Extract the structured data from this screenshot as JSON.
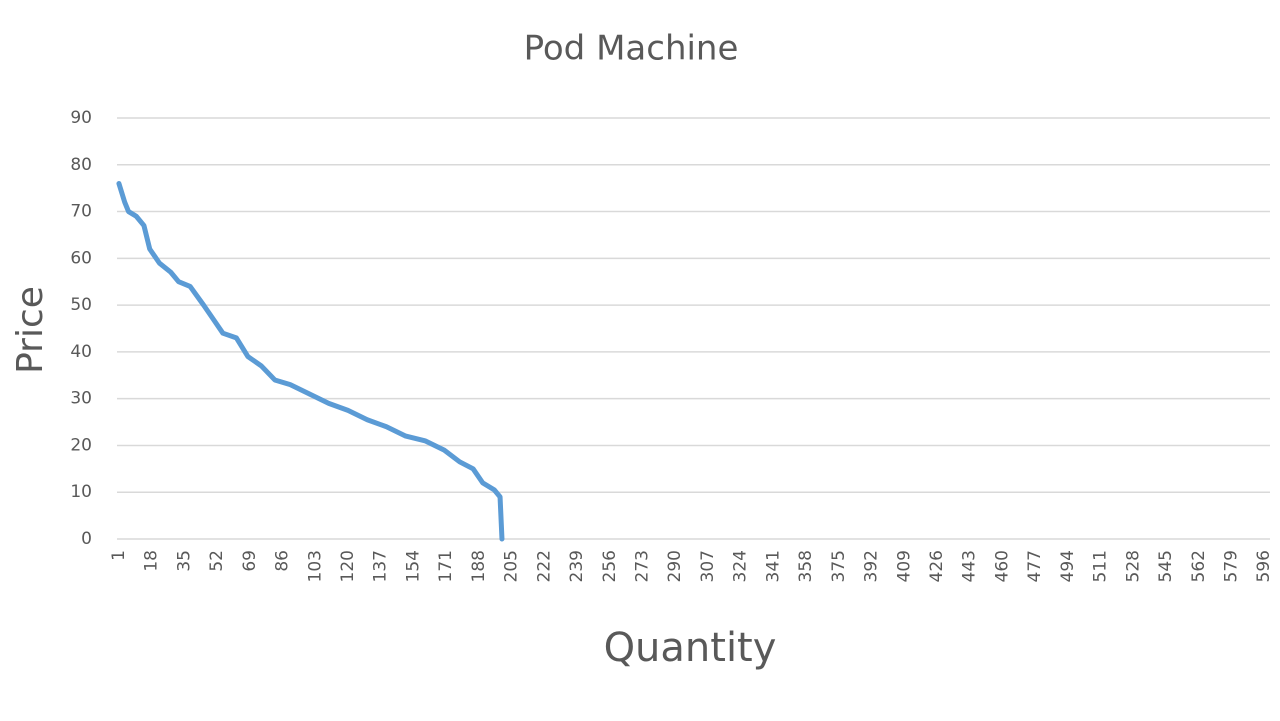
{
  "chart_data": {
    "type": "line",
    "title": "Pod Machine",
    "x_label": "Quantity",
    "y_label": "Price",
    "x": [
      1,
      4,
      6,
      10,
      14,
      17,
      22,
      28,
      32,
      38,
      45,
      50,
      55,
      62,
      68,
      75,
      82,
      90,
      100,
      110,
      120,
      130,
      140,
      150,
      160,
      170,
      178,
      185,
      190,
      196,
      199,
      200
    ],
    "series": [
      {
        "name": "Price",
        "color": "#5b9bd5",
        "values": [
          76,
          72,
          70,
          69,
          67,
          62,
          59,
          57,
          55,
          54,
          50,
          47,
          44,
          43,
          39,
          37,
          34,
          33,
          31,
          29,
          27.5,
          25.5,
          24,
          22,
          21,
          19,
          16.5,
          15,
          12,
          10.5,
          9,
          0
        ]
      }
    ],
    "xlim": [
      0,
      599
    ],
    "xticks": [
      1,
      18,
      35,
      52,
      69,
      86,
      103,
      120,
      137,
      154,
      171,
      188,
      205,
      222,
      239,
      256,
      273,
      290,
      307,
      324,
      341,
      358,
      375,
      392,
      409,
      426,
      443,
      460,
      477,
      494,
      511,
      528,
      545,
      562,
      579,
      596
    ],
    "ylim": [
      0,
      90
    ],
    "yticks": [
      0,
      10,
      20,
      30,
      40,
      50,
      60,
      70,
      80,
      90
    ],
    "grid": true
  }
}
